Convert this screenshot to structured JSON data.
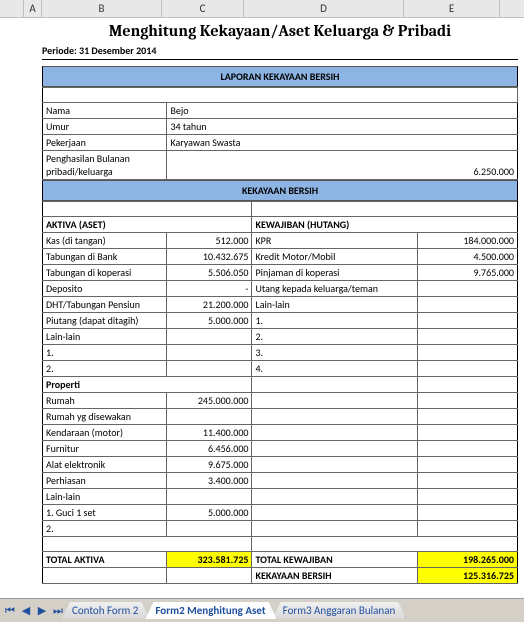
{
  "columns": {
    "A": "A",
    "B": "B",
    "C": "C",
    "D": "D",
    "E": "E"
  },
  "title": "Menghitung Kekayaan/Aset Keluarga & Pribadi",
  "periode": "Periode: 31 Desember 2014",
  "section_laporan": "LAPORAN KEKAYAAN BERSIH",
  "info": {
    "nama_l": "Nama",
    "nama_v": "Bejo",
    "umur_l": "Umur",
    "umur_v": "34 tahun",
    "pekerjaan_l": "Pekerjaan",
    "pekerjaan_v": "Karyawan Swasta",
    "penghasilan_l": "Penghasilan Bulanan pribadi/keluarga",
    "penghasilan_v": "6.250.000"
  },
  "section_kekayaan": "KEKAYAAN BERSIH",
  "aktiva_head": "AKTIVA (ASET)",
  "kewajiban_head": "KEWAJIBAN (HUTANG)",
  "rows": [
    {
      "bl": "Kas (di tangan)",
      "bc": "512.000",
      "dl": "KPR",
      "dc": "184.000.000"
    },
    {
      "bl": "Tabungan di Bank",
      "bc": "10.432.675",
      "dl": "Kredit Motor/Mobil",
      "dc": "4.500.000"
    },
    {
      "bl": "Tabungan di koperasi",
      "bc": "5.506.050",
      "dl": "Pinjaman di koperasi",
      "dc": "9.765.000"
    },
    {
      "bl": "Deposito",
      "bc": "-",
      "dl": "Utang kepada keluarga/teman",
      "dc": ""
    },
    {
      "bl": "DHT/Tabungan Pensiun",
      "bc": "21.200.000",
      "dl": "Lain-lain",
      "dc": ""
    },
    {
      "bl": "Piutang (dapat ditagih)",
      "bc": "5.000.000",
      "dl": "1.",
      "dc": ""
    },
    {
      "bl": "Lain-lain",
      "bc": "",
      "dl": "2.",
      "dc": ""
    },
    {
      "bl": "1.",
      "bc": "",
      "dl": "3.",
      "dc": ""
    },
    {
      "bl": "2.",
      "bc": "",
      "dl": "4.",
      "dc": ""
    }
  ],
  "properti_head": "Properti",
  "properti": [
    {
      "l": "Rumah",
      "v": "245.000.000"
    },
    {
      "l": "Rumah yg disewakan",
      "v": ""
    },
    {
      "l": "Kendaraan (motor)",
      "v": "11.400.000"
    },
    {
      "l": "Furnitur",
      "v": "6.456.000"
    },
    {
      "l": "Alat elektronik",
      "v": "9.675.000"
    },
    {
      "l": "Perhiasan",
      "v": "3.400.000"
    },
    {
      "l": "Lain-lain",
      "v": ""
    },
    {
      "l": "1. Guci 1 set",
      "v": "5.000.000"
    },
    {
      "l": "2.",
      "v": ""
    }
  ],
  "totals": {
    "total_aktiva_l": "TOTAL AKTIVA",
    "total_aktiva_v": "323.581.725",
    "total_kewajiban_l": "TOTAL KEWAJIBAN",
    "total_kewajiban_v": "198.265.000",
    "kekayaan_bersih_l": "KEKAYAAN BERSIH",
    "kekayaan_bersih_v": "125.316.725"
  },
  "tabs": {
    "t1": "Contoh Form 2",
    "t2": "Form2 Menghitung Aset",
    "t3": "Form3 Anggaran Bulanan"
  },
  "colors": {
    "header_bg": "#8db4e2",
    "highlight": "#ffff00"
  }
}
